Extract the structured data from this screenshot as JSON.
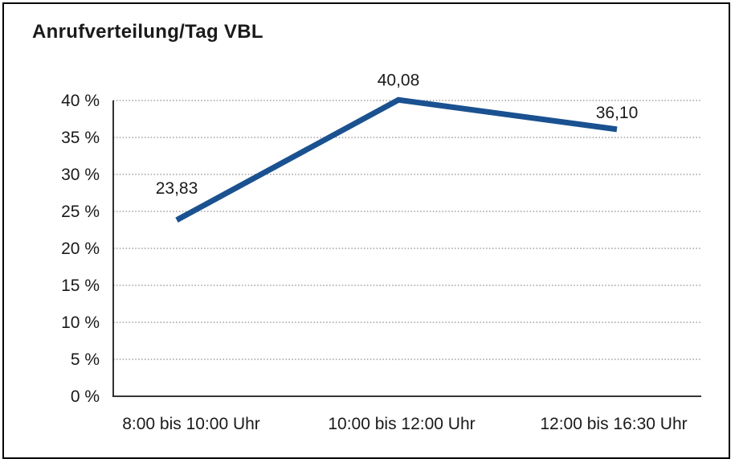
{
  "page": {
    "title": "Anrufverteilung/Tag VBL"
  },
  "chart_data": {
    "type": "line",
    "title": "Anrufverteilung/Tag VBL",
    "categories": [
      "8:00 bis 10:00 Uhr",
      "10:00 bis 12:00 Uhr",
      "12:00 bis 16:30 Uhr"
    ],
    "series": [
      {
        "name": "Anrufverteilung/Tag VBL",
        "values": [
          23.83,
          40.08,
          36.1
        ],
        "data_labels": [
          "23,83",
          "40,08",
          "36,10"
        ]
      }
    ],
    "xlabel": "",
    "ylabel": "",
    "ylim": [
      0,
      40
    ],
    "y_tick_step": 5,
    "y_tick_labels": [
      "0 %",
      "5 %",
      "10 %",
      "15 %",
      "20 %",
      "25 %",
      "30 %",
      "35 %",
      "40 %"
    ],
    "grid": "horizontal-dotted",
    "legend": "none",
    "colors": {
      "line": "#1A5190",
      "grid": "#8C8C8C",
      "axis": "#1A1A1A",
      "text": "#1A1A1A",
      "background": "#FFFFFF",
      "frame": "#000000"
    }
  }
}
